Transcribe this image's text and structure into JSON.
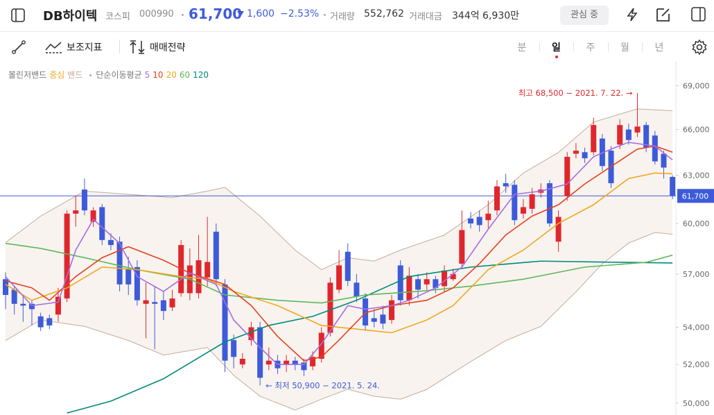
{
  "header": {
    "title": "DB하이텍",
    "market": "코스피",
    "code": "000990",
    "price": "61,700",
    "change": "1,600",
    "change_rate": "−2.53%",
    "volume_label": "거래량",
    "volume": "552,762",
    "amount_label": "거래대금",
    "amount": "344억 6,930만",
    "watch_button": "관심 중"
  },
  "toolbar": {
    "indicators": "보조지표",
    "strategy": "매매전략",
    "periods": [
      "분",
      "일",
      "주",
      "월",
      "년"
    ],
    "selected": 1
  },
  "chart_data": {
    "type": "candlestick",
    "indicator_label": "볼린저밴드",
    "band": {
      "center_label": "중심",
      "center_color": "#f0a81e",
      "name": "밴드",
      "color": "#c4ab98",
      "fill": "#f8f3ef",
      "upper": {
        "x": [
          0,
          4,
          9,
          14,
          19,
          23,
          25,
          29,
          33,
          36,
          39,
          42,
          45,
          50,
          55,
          59,
          63,
          67,
          72,
          76
        ],
        "values": [
          58850,
          60450,
          62000,
          61800,
          61600,
          62000,
          62240,
          60450,
          58400,
          57250,
          57950,
          57750,
          58400,
          59300,
          61150,
          63150,
          64480,
          66500,
          67400,
          67270
        ]
      },
      "lower": {
        "x": [
          0,
          4,
          9,
          14,
          18,
          23,
          26,
          29,
          33,
          36,
          39,
          42,
          45,
          48,
          53,
          57,
          61,
          65,
          68,
          71,
          74,
          76
        ],
        "values": [
          53280,
          54400,
          54050,
          53280,
          52500,
          52900,
          51430,
          50350,
          49650,
          50200,
          50710,
          50350,
          50200,
          50700,
          52150,
          53280,
          54050,
          55980,
          57590,
          58820,
          59450,
          59350
        ]
      }
    },
    "ma_label": "단순이동평균",
    "series": [
      {
        "name": "5",
        "color": "#a66ee0",
        "x": [
          0,
          3,
          6,
          8,
          10,
          13,
          15,
          18,
          21,
          24,
          26,
          29,
          31,
          34,
          36,
          39,
          41,
          44,
          46,
          49,
          52,
          55,
          58,
          61,
          64,
          67,
          69,
          71,
          74,
          76
        ],
        "values": [
          56850,
          55200,
          55400,
          58400,
          60250,
          58800,
          56850,
          56000,
          57050,
          56400,
          54400,
          52900,
          52000,
          52000,
          53100,
          55200,
          55000,
          55200,
          55500,
          56200,
          57400,
          59650,
          61800,
          62000,
          62450,
          64200,
          64700,
          65150,
          64900,
          64000
        ]
      },
      {
        "name": "10",
        "color": "#e8401c",
        "x": [
          0,
          3,
          5,
          8,
          11,
          14,
          18,
          21,
          25,
          28,
          31,
          34,
          36,
          38,
          41,
          44,
          48,
          51,
          54,
          57,
          60,
          63,
          66,
          69,
          72,
          74,
          76
        ],
        "values": [
          56600,
          56200,
          55500,
          56850,
          57950,
          58600,
          57800,
          57050,
          56400,
          55200,
          53500,
          52200,
          52400,
          53300,
          54800,
          55200,
          55500,
          56200,
          57600,
          59300,
          60450,
          61150,
          62450,
          63570,
          64700,
          64900,
          64500
        ]
      },
      {
        "name": "20",
        "color": "#f0a81e",
        "x": [
          0,
          3,
          7,
          11,
          15,
          20,
          23,
          26,
          31,
          36,
          40,
          44,
          48,
          51,
          55,
          59,
          63,
          67,
          71,
          74,
          76
        ],
        "values": [
          56400,
          55500,
          56200,
          57400,
          57250,
          56850,
          56700,
          56000,
          55200,
          54100,
          53900,
          53700,
          54400,
          55200,
          57250,
          58400,
          60000,
          61150,
          62800,
          63150,
          63100
        ]
      },
      {
        "name": "60",
        "color": "#5cb85c",
        "x": [
          0,
          4,
          9,
          15,
          21,
          25,
          31,
          36,
          41,
          47,
          53,
          59,
          66,
          73,
          76
        ],
        "values": [
          58800,
          58500,
          57950,
          57250,
          56700,
          55800,
          55500,
          55350,
          55800,
          56000,
          56300,
          56700,
          57400,
          57680,
          58100
        ]
      },
      {
        "name": "120",
        "color": "#00897b",
        "x": [
          7,
          12,
          18,
          25,
          30,
          35,
          40,
          46,
          53,
          61,
          70,
          76
        ],
        "values": [
          49500,
          50100,
          51250,
          53200,
          54100,
          54600,
          55500,
          56850,
          57400,
          57750,
          57680,
          57640
        ]
      }
    ],
    "open": [
      56700,
      56100,
      55300,
      55300,
      54600,
      54500,
      54700,
      55600,
      60600,
      62100,
      60100,
      61000,
      59000,
      58900,
      57300,
      57400,
      55300,
      55400,
      55500,
      55100,
      55900,
      55900,
      55900,
      56800,
      59500,
      56400,
      53300,
      52000,
      53300,
      54000,
      52000,
      52200,
      52000,
      52200,
      52100,
      51900,
      52300,
      53700,
      56100,
      58300,
      56500,
      55600,
      54500,
      54700,
      54400,
      57500,
      55500,
      56700,
      56400,
      56700,
      56300,
      56700,
      57600,
      60300,
      60400,
      60200,
      60800,
      62500,
      62400,
      60600,
      60900,
      61900,
      62500,
      58900,
      61700,
      64400,
      64500,
      64500,
      65400,
      64600,
      65000,
      66000,
      65800,
      66300,
      65600,
      64400,
      62900
    ],
    "high": [
      57100,
      56300,
      55800,
      55500,
      54800,
      54700,
      56200,
      60800,
      61700,
      62800,
      61000,
      61200,
      59400,
      59200,
      58000,
      57800,
      56500,
      56300,
      56000,
      56100,
      59000,
      58500,
      59300,
      60400,
      60000,
      56700,
      53600,
      52600,
      54300,
      54300,
      52900,
      52500,
      52500,
      52400,
      52300,
      52700,
      54000,
      56800,
      58400,
      58800,
      57000,
      55900,
      55000,
      55200,
      55800,
      57800,
      57400,
      57000,
      57100,
      56900,
      57500,
      57300,
      60800,
      60700,
      60800,
      61400,
      62700,
      63100,
      62700,
      61500,
      62200,
      62500,
      62700,
      60800,
      64500,
      65100,
      64800,
      66800,
      65700,
      64900,
      66700,
      66400,
      68500,
      66500,
      65900,
      64600,
      63000
    ],
    "low": [
      55000,
      54700,
      54300,
      54100,
      53800,
      53900,
      54300,
      55400,
      59800,
      60500,
      59800,
      58700,
      58400,
      56000,
      55800,
      55200,
      53400,
      52800,
      54400,
      54900,
      55700,
      55500,
      55600,
      56300,
      56300,
      51600,
      51800,
      51800,
      53000,
      50900,
      51700,
      51500,
      51600,
      51700,
      51400,
      51700,
      52100,
      53500,
      55900,
      56300,
      55400,
      53800,
      54000,
      53900,
      54200,
      55200,
      55200,
      55600,
      56100,
      55900,
      56000,
      56600,
      57400,
      59700,
      59500,
      59700,
      60500,
      61900,
      59900,
      60300,
      60600,
      61600,
      59800,
      58300,
      61400,
      64100,
      63800,
      64300,
      63300,
      62200,
      64700,
      65000,
      65500,
      64500,
      63700,
      62800,
      61500
    ],
    "close": [
      55800,
      55300,
      55200,
      55000,
      54000,
      54100,
      55700,
      60600,
      60800,
      60800,
      60800,
      59000,
      58700,
      56400,
      56400,
      55500,
      55500,
      55300,
      54900,
      55600,
      58700,
      57500,
      57800,
      57700,
      56700,
      52200,
      52400,
      52300,
      54000,
      51300,
      52200,
      51800,
      52200,
      52000,
      51700,
      52400,
      53700,
      56500,
      57500,
      56600,
      55700,
      54100,
      54300,
      54200,
      55500,
      55500,
      56900,
      56100,
      56700,
      56200,
      57200,
      57000,
      59600,
      60000,
      59900,
      60600,
      62300,
      62300,
      60200,
      61000,
      61800,
      62100,
      60000,
      60400,
      64200,
      64600,
      64100,
      66300,
      63600,
      62500,
      66300,
      65300,
      66200,
      64800,
      63900,
      63500,
      61700
    ],
    "up_color": "#e0262d",
    "down_color": "#3d5bd9",
    "ylim": [
      49400,
      70400
    ],
    "log_scale": true,
    "grid": false,
    "yticks": [
      {
        "value": 50000,
        "label": "50,000"
      },
      {
        "value": 52000,
        "label": "52,000"
      },
      {
        "value": 54000,
        "label": "54,000"
      },
      {
        "value": 57000,
        "label": "57,000"
      },
      {
        "value": 60000,
        "label": "60,000"
      },
      {
        "value": 63000,
        "label": "63,000"
      },
      {
        "value": 66000,
        "label": "66,000"
      },
      {
        "value": 69000,
        "label": "69,000"
      }
    ],
    "current_price": {
      "value": 61700,
      "label": "61,700"
    },
    "current_color": "#3d5bd9",
    "annotations": [
      {
        "text": "최고 68,500 − 2021. 7. 22. →",
        "value": 68500,
        "color": "#e0262d",
        "side": "left"
      },
      {
        "text": "← 최저 50,900 − 2021. 5. 24.",
        "value": 50900,
        "color": "#3d5bd9",
        "side": "right"
      }
    ]
  }
}
